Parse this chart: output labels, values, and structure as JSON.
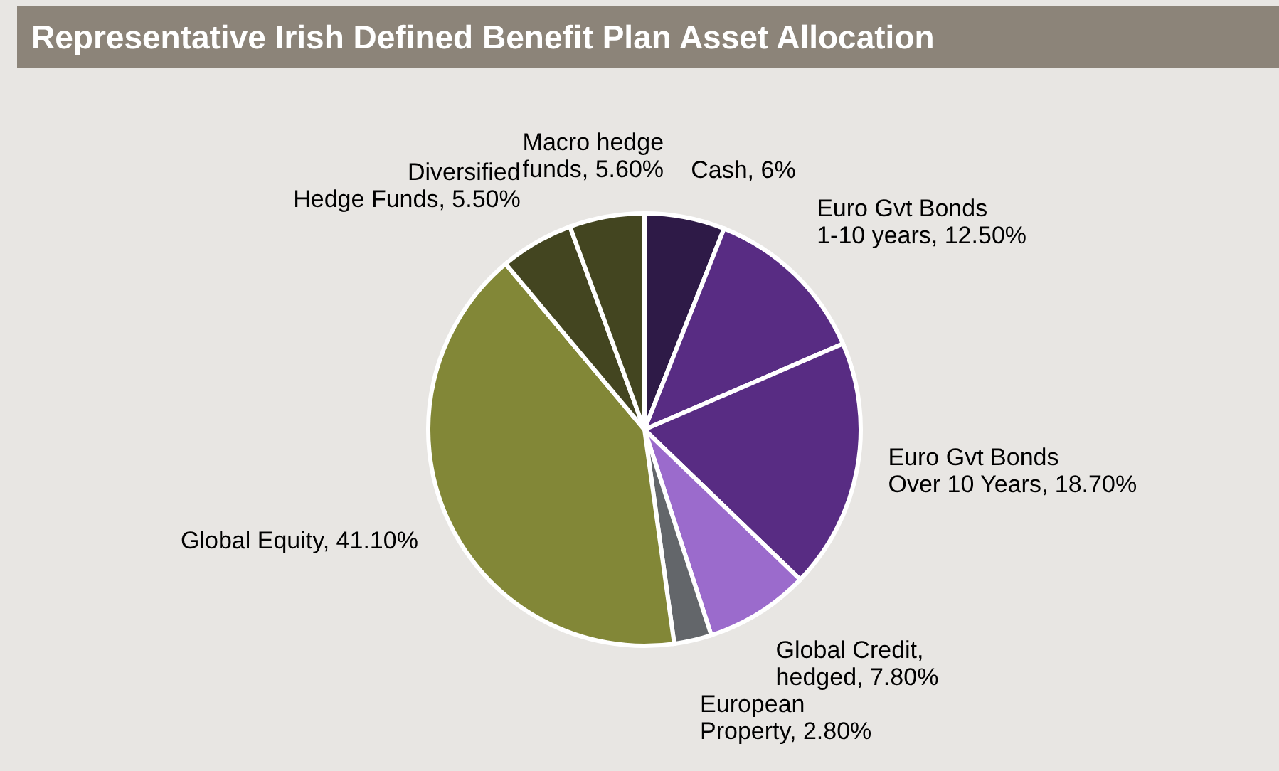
{
  "chart_data": {
    "type": "pie",
    "title": "Representative Irish Defined Benefit Plan Asset Allocation",
    "categories": [
      "Cash",
      "Euro Gvt Bonds 1-10 years",
      "Euro Gvt Bonds Over 10 Years",
      "Global Credit, hedged",
      "European Property",
      "Global Equity",
      "Diversified Hedge Funds",
      "Macro hedge funds"
    ],
    "values": [
      6,
      12.5,
      18.7,
      7.8,
      2.8,
      41.1,
      5.5,
      5.6
    ],
    "value_labels": [
      "6%",
      "12.50%",
      "18.70%",
      "7.80%",
      "2.80%",
      "41.10%",
      "5.50%",
      "5.60%"
    ],
    "colors": [
      "#2e1a47",
      "#582c83",
      "#582c83",
      "#9b6bcc",
      "#63666a",
      "#828737",
      "#434520",
      "#434520"
    ]
  }
}
